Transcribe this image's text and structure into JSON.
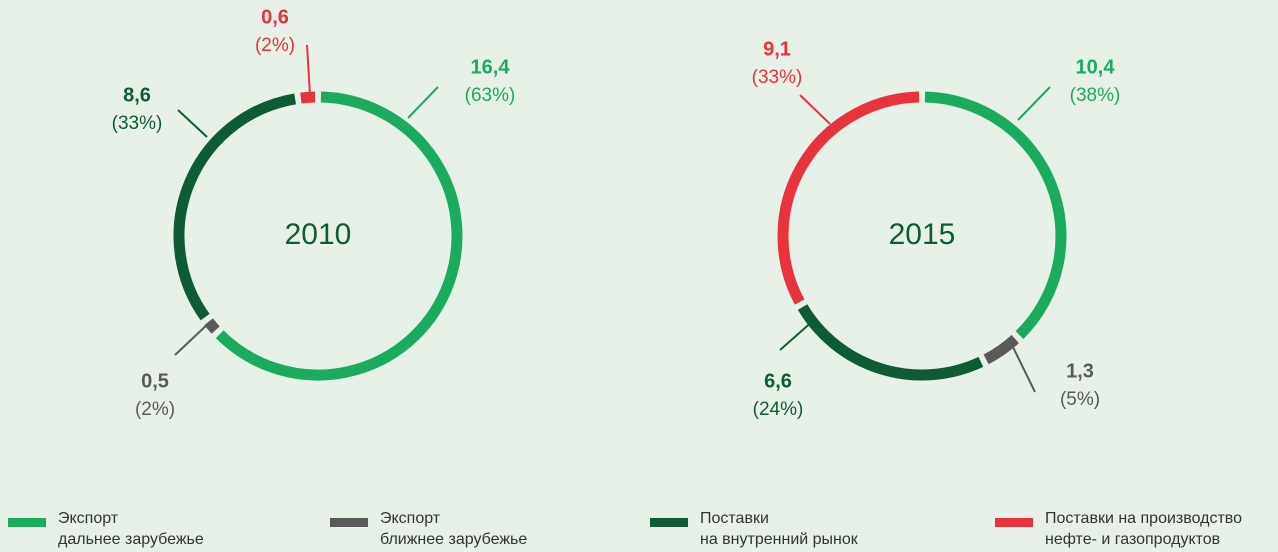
{
  "chart_data": [
    {
      "type": "donut",
      "title": "2010",
      "categories": [
        "Экспорт\nдальнее зарубежье",
        "Экспорт\nближнее зарубежье",
        "Поставки\nна внутренний рынок",
        "Поставки на производство\nнефте- и газопродуктов"
      ],
      "colors": [
        "#1aab5e",
        "#5a5a5a",
        "#0e5c35",
        "#e8323c"
      ],
      "values": [
        16.4,
        0.5,
        8.6,
        0.6
      ],
      "value_labels": [
        "16,4",
        "0,5",
        "8,6",
        "0,6"
      ],
      "shares": [
        63,
        2,
        33,
        2
      ],
      "share_labels": [
        "(63%)",
        "(2%)",
        "(33%)",
        "(2%)"
      ]
    },
    {
      "type": "donut",
      "title": "2015",
      "categories": [
        "Экспорт\nдальнее зарубежье",
        "Экспорт\nближнее зарубежье",
        "Поставки\nна внутренний рынок",
        "Поставки на производство\nнефте- и газопродуктов"
      ],
      "colors": [
        "#1aab5e",
        "#5a5a5a",
        "#0e5c35",
        "#e8323c"
      ],
      "values": [
        10.4,
        1.3,
        6.6,
        9.1
      ],
      "value_labels": [
        "10,4",
        "1,3",
        "6,6",
        "9,1"
      ],
      "shares": [
        38,
        5,
        24,
        33
      ],
      "share_labels": [
        "(38%)",
        "(5%)",
        "(24%)",
        "(33%)"
      ]
    }
  ]
}
